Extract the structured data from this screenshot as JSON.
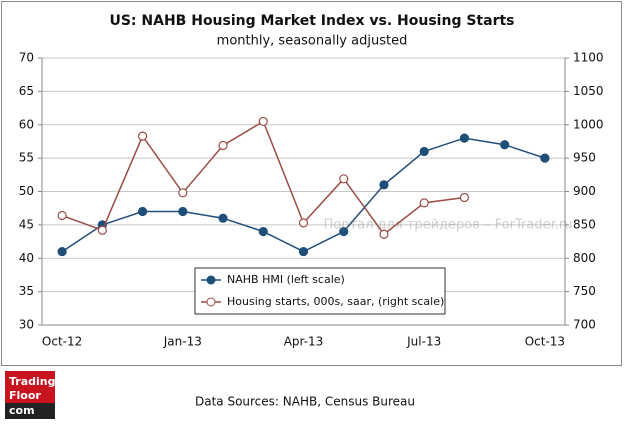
{
  "chart_data": {
    "type": "line",
    "title": "US: NAHB Housing Market Index vs. Housing Starts",
    "subtitle": "monthly, seasonally adjusted",
    "categories": [
      "Oct-12",
      null,
      null,
      "Jan-13",
      null,
      null,
      "Apr-13",
      null,
      null,
      "Jul-13",
      null,
      null,
      "Oct-13"
    ],
    "series": [
      {
        "name": "NAHB HMI (left scale)",
        "color": "#1f4e79",
        "marker": "filled",
        "values": [
          41,
          45,
          47,
          47,
          46,
          44,
          41,
          44,
          51,
          56,
          58,
          57,
          55
        ]
      },
      {
        "name": "Housing starts, 000s, saar, (right scale)",
        "color": "#9c4b46",
        "marker": "hollow",
        "axis": "y2",
        "values": [
          864,
          842,
          983,
          898,
          969,
          1005,
          853,
          919,
          836,
          883,
          891,
          null,
          null
        ]
      }
    ],
    "ylim": [
      30,
      70
    ],
    "yticks": [
      30,
      35,
      40,
      45,
      50,
      55,
      60,
      65,
      70
    ],
    "y2lim": [
      700,
      1100
    ],
    "y2ticks": [
      700,
      750,
      800,
      850,
      900,
      950,
      1000,
      1050,
      1100
    ],
    "grid": true,
    "legend": "lower center"
  },
  "watermark": "Портал для трейдеров – ForTrader.ru",
  "source": "Data Sources: NAHB, Census Bureau",
  "logo": {
    "line1": "Trading",
    "line2": "Floor",
    "line3": "com"
  }
}
